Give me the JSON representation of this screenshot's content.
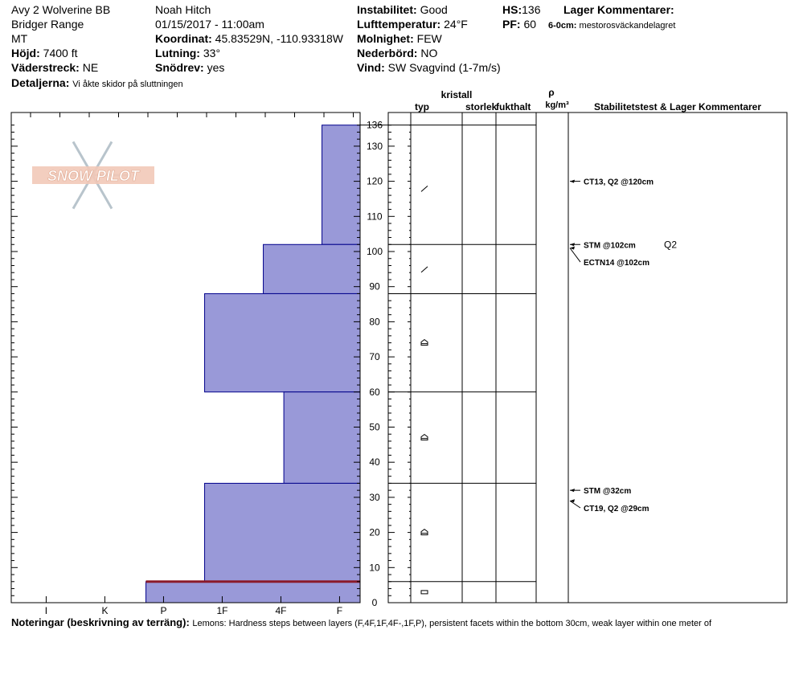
{
  "header": {
    "site": "Avy 2 Wolverine BB",
    "range": "Bridger Range",
    "state": "MT",
    "elev_label": "Höjd:",
    "elev_value": "7400 ft",
    "aspect_label": "Väderstreck:",
    "aspect_value": "NE",
    "details_label": "Detaljerna:",
    "details_value": "Vi åkte skidor på sluttningen",
    "observer": "Noah Hitch",
    "datetime": "01/15/2017 - 11:00am",
    "coord_label": "Koordinat:",
    "coord_value": "45.83529N, -110.93318W",
    "slope_label": "Lutning:",
    "slope_value": "33°",
    "drift_label": "Snödrev:",
    "drift_value": "yes",
    "instab_label": "Instabilitet:",
    "instab_value": "Good",
    "airtemp_label": "Lufttemperatur:",
    "airtemp_value": "24°F",
    "sky_label": "Molnighet:",
    "sky_value": "FEW",
    "precip_label": "Nederbörd:",
    "precip_value": "NO",
    "wind_label": "Vind:",
    "wind_value": "SW  Svagvind (1-7m/s)",
    "hs_label": "HS:",
    "hs_value": "136",
    "pf_label": "PF:",
    "pf_value": "60",
    "layer_comments_label": "Lager Kommentarer:",
    "layer_comment_depth": "6-0cm:",
    "layer_comment_text": "mestorosväckandelagret"
  },
  "logo_text": "SNOW PILOT",
  "columns": {
    "crystal": "kristall",
    "type": "typ",
    "size": "storlek",
    "moisture": "fukthalt",
    "rho": "ρ",
    "density_unit": "kg/m³",
    "stability": "Stabilitetstest & Lager Kommentarer"
  },
  "notes_label": "Noteringar (beskrivning av terräng):",
  "notes_text": "Lemons: Hardness steps between layers (F,4F,1F,4F-,1F,P), persistent facets within the bottom 30cm, weak layer within one meter of",
  "chart_data": {
    "type": "bar",
    "title": "",
    "xlabel": "",
    "ylabel": "",
    "hardness_ticks": [
      "I",
      "K",
      "P",
      "1F",
      "4F",
      "F"
    ],
    "hardness_scale_max": 6,
    "height_ticks": [
      0,
      10,
      20,
      30,
      40,
      50,
      60,
      70,
      80,
      90,
      100,
      110,
      120,
      130
    ],
    "height_top_label": "136",
    "ylim": [
      0,
      136
    ],
    "layers": [
      {
        "bottom": 102,
        "top": 136,
        "hardness": 0.65
      },
      {
        "bottom": 88,
        "top": 102,
        "hardness": 1.65
      },
      {
        "bottom": 60,
        "top": 88,
        "hardness": 2.65
      },
      {
        "bottom": 34,
        "top": 60,
        "hardness": 1.3
      },
      {
        "bottom": 6,
        "top": 34,
        "hardness": 2.65
      },
      {
        "bottom": 0,
        "top": 6,
        "hardness": 3.65
      }
    ],
    "crust_at": 6,
    "fill_color": "#9999d8",
    "crust_color": "#8b1a2a",
    "grain_symbols": [
      {
        "height": 118,
        "symbol": "/"
      },
      {
        "height": 95,
        "symbol": "/"
      },
      {
        "height": 74,
        "symbol": "⌂"
      },
      {
        "height": 47,
        "symbol": "⌂"
      },
      {
        "height": 20,
        "symbol": "⌂"
      },
      {
        "height": 3,
        "symbol": "▭"
      }
    ],
    "tests": [
      {
        "height": 120,
        "label_height": 120,
        "text": "CT13, Q2 @120cm"
      },
      {
        "height": 102,
        "label_height": 102,
        "text": "STM @102cm",
        "extra": "Q2"
      },
      {
        "height": 101,
        "label_height": 97,
        "text": "ECTN14 @102cm"
      },
      {
        "height": 32,
        "label_height": 32,
        "text": "STM @32cm"
      },
      {
        "height": 29,
        "label_height": 27,
        "text": "CT19, Q2 @29cm"
      }
    ]
  }
}
